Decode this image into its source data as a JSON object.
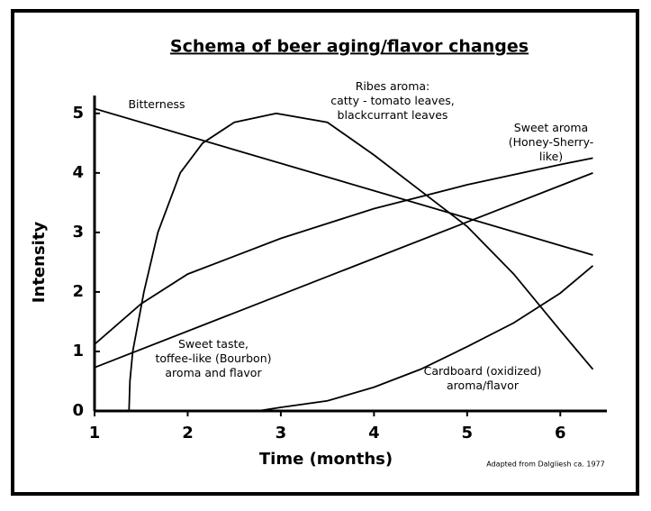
{
  "chart_data": {
    "type": "line",
    "title": "Schema of beer aging/flavor changes",
    "x_label": "Time (months)",
    "y_label": "Intensity",
    "note": "Adapted from Dalgliesh ca. 1977",
    "xlim": [
      1,
      6.5
    ],
    "ylim": [
      0,
      5.3
    ],
    "xticks": [
      1,
      2,
      3,
      4,
      5,
      6
    ],
    "yticks": [
      0,
      1,
      2,
      3,
      4,
      5
    ],
    "grid": false,
    "series": [
      {
        "name": "Bitterness",
        "color": "#000000",
        "x": [
          1,
          6.35
        ],
        "values": [
          5.08,
          2.62
        ]
      },
      {
        "name": "Ribes aroma:\ncatty - tomato leaves,\nblackcurrant leaves",
        "color": "#000000",
        "x": [
          1.37,
          1.38,
          1.41,
          1.53,
          1.68,
          1.92,
          2.16,
          2.5,
          2.95,
          3.5,
          4,
          4.5,
          5,
          5.5,
          6,
          6.35
        ],
        "values": [
          0,
          0.5,
          1,
          2,
          3,
          4,
          4.5,
          4.85,
          5,
          4.85,
          4.3,
          3.7,
          3.1,
          2.3,
          1.35,
          0.7
        ]
      },
      {
        "name": "Sweet aroma\n(Honey-Sherry-like)",
        "color": "#000000",
        "x": [
          1,
          1.5,
          2,
          3,
          4,
          5,
          6,
          6.35
        ],
        "values": [
          1.12,
          1.8,
          2.3,
          2.9,
          3.4,
          3.8,
          4.14,
          4.25
        ]
      },
      {
        "name": "Sweet taste,\ntoffee-like (Bourbon)\naroma and flavor",
        "color": "#000000",
        "x": [
          1,
          6.35
        ],
        "values": [
          0.73,
          4.0
        ]
      },
      {
        "name": "Cardboard (oxidized)\naroma/flavor",
        "color": "#000000",
        "x": [
          2.75,
          3,
          3.5,
          4,
          4.5,
          5,
          5.5,
          6,
          6.35
        ],
        "values": [
          0,
          0.06,
          0.17,
          0.4,
          0.7,
          1.08,
          1.48,
          1.98,
          2.44
        ]
      }
    ]
  }
}
